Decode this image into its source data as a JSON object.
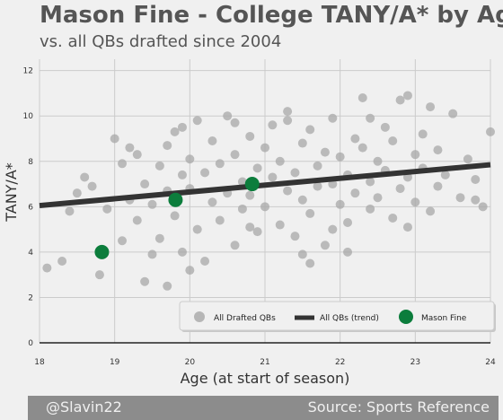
{
  "header": {
    "title": "Mason Fine - College TANY/A* by Age",
    "subtitle": "vs. all QBs drafted since 2004"
  },
  "footer": {
    "handle": "@Slavin22",
    "source": "Source: Sports Reference"
  },
  "colors": {
    "background": "#f0f0f0",
    "grid": "#cbcbcb",
    "drafted": "#a8a8a8",
    "trend": "#333333",
    "highlight": "#0c7d3c",
    "footer": "#8c8c8c"
  },
  "chart_data": {
    "type": "scatter",
    "xlabel": "Age (at start of season)",
    "ylabel": "TANY/A*",
    "xlim": [
      18,
      24
    ],
    "ylim": [
      0,
      12.5
    ],
    "xticks": [
      "18",
      "19",
      "20",
      "21",
      "22",
      "23",
      "24"
    ],
    "yticks": [
      "0",
      "2",
      "4",
      "6",
      "8",
      "10",
      "12"
    ],
    "grid": true,
    "legend_position": "bottom-right",
    "series": [
      {
        "name": "All Drafted QBs",
        "kind": "scatter",
        "points": [
          [
            18.1,
            3.3
          ],
          [
            18.3,
            3.6
          ],
          [
            18.4,
            5.8
          ],
          [
            18.5,
            6.6
          ],
          [
            18.6,
            7.3
          ],
          [
            18.7,
            6.9
          ],
          [
            18.8,
            3.0
          ],
          [
            18.9,
            5.9
          ],
          [
            19.0,
            9.0
          ],
          [
            19.1,
            7.9
          ],
          [
            19.1,
            4.5
          ],
          [
            19.2,
            6.3
          ],
          [
            19.3,
            8.3
          ],
          [
            19.3,
            5.4
          ],
          [
            19.4,
            7.0
          ],
          [
            19.5,
            6.1
          ],
          [
            19.5,
            3.9
          ],
          [
            19.6,
            7.8
          ],
          [
            19.6,
            4.6
          ],
          [
            19.7,
            8.7
          ],
          [
            19.7,
            6.7
          ],
          [
            19.8,
            5.6
          ],
          [
            19.8,
            9.3
          ],
          [
            19.9,
            7.4
          ],
          [
            19.9,
            4.0
          ],
          [
            20.0,
            6.8
          ],
          [
            20.0,
            8.1
          ],
          [
            20.1,
            5.0
          ],
          [
            20.1,
            9.8
          ],
          [
            20.2,
            7.5
          ],
          [
            20.2,
            3.6
          ],
          [
            20.3,
            6.2
          ],
          [
            20.3,
            8.9
          ],
          [
            20.4,
            5.4
          ],
          [
            20.4,
            7.9
          ],
          [
            20.5,
            6.6
          ],
          [
            20.5,
            10.0
          ],
          [
            20.6,
            4.3
          ],
          [
            20.6,
            8.3
          ],
          [
            20.7,
            7.1
          ],
          [
            20.7,
            5.9
          ],
          [
            20.8,
            9.1
          ],
          [
            20.8,
            6.5
          ],
          [
            20.9,
            7.7
          ],
          [
            20.9,
            4.9
          ],
          [
            21.0,
            8.6
          ],
          [
            21.0,
            6.0
          ],
          [
            21.1,
            9.6
          ],
          [
            21.1,
            7.3
          ],
          [
            21.2,
            5.2
          ],
          [
            21.2,
            8.0
          ],
          [
            21.3,
            6.7
          ],
          [
            21.3,
            10.2
          ],
          [
            21.4,
            7.5
          ],
          [
            21.4,
            4.7
          ],
          [
            21.5,
            8.8
          ],
          [
            21.5,
            6.3
          ],
          [
            21.6,
            9.4
          ],
          [
            21.6,
            5.7
          ],
          [
            21.7,
            7.8
          ],
          [
            21.7,
            6.9
          ],
          [
            21.8,
            8.4
          ],
          [
            21.8,
            4.3
          ],
          [
            21.9,
            7.0
          ],
          [
            21.9,
            9.9
          ],
          [
            22.0,
            6.1
          ],
          [
            22.0,
            8.2
          ],
          [
            22.1,
            7.4
          ],
          [
            22.1,
            5.3
          ],
          [
            22.2,
            9.0
          ],
          [
            22.2,
            6.6
          ],
          [
            22.3,
            8.6
          ],
          [
            22.3,
            10.8
          ],
          [
            22.4,
            7.1
          ],
          [
            22.4,
            5.9
          ],
          [
            22.5,
            8.0
          ],
          [
            22.5,
            6.4
          ],
          [
            22.6,
            9.5
          ],
          [
            22.6,
            7.6
          ],
          [
            22.7,
            5.5
          ],
          [
            22.7,
            8.9
          ],
          [
            22.8,
            6.8
          ],
          [
            22.8,
            10.7
          ],
          [
            22.9,
            7.3
          ],
          [
            22.9,
            5.1
          ],
          [
            23.0,
            8.3
          ],
          [
            23.0,
            6.2
          ],
          [
            23.1,
            7.7
          ],
          [
            23.1,
            9.2
          ],
          [
            23.2,
            5.8
          ],
          [
            23.3,
            8.5
          ],
          [
            23.3,
            6.9
          ],
          [
            23.4,
            7.4
          ],
          [
            23.5,
            10.1
          ],
          [
            23.6,
            6.4
          ],
          [
            23.7,
            8.1
          ],
          [
            23.8,
            7.2
          ],
          [
            23.9,
            6.0
          ],
          [
            24.0,
            9.3
          ],
          [
            19.4,
            2.7
          ],
          [
            19.7,
            2.5
          ],
          [
            20.0,
            3.2
          ],
          [
            21.6,
            3.5
          ],
          [
            22.1,
            4.0
          ],
          [
            19.9,
            9.5
          ],
          [
            20.6,
            9.7
          ],
          [
            21.3,
            9.8
          ],
          [
            22.4,
            9.9
          ],
          [
            23.2,
            10.4
          ],
          [
            22.9,
            10.9
          ],
          [
            20.8,
            5.1
          ],
          [
            21.9,
            5.0
          ],
          [
            19.2,
            8.6
          ],
          [
            21.5,
            3.9
          ],
          [
            23.8,
            6.3
          ]
        ]
      },
      {
        "name": "All QBs (trend)",
        "kind": "line",
        "points": [
          [
            18,
            6.05
          ],
          [
            24,
            7.85
          ]
        ]
      },
      {
        "name": "Mason Fine",
        "kind": "scatter",
        "points": [
          [
            18.83,
            4.0
          ],
          [
            19.81,
            6.3
          ],
          [
            20.83,
            7.0
          ]
        ]
      }
    ]
  }
}
